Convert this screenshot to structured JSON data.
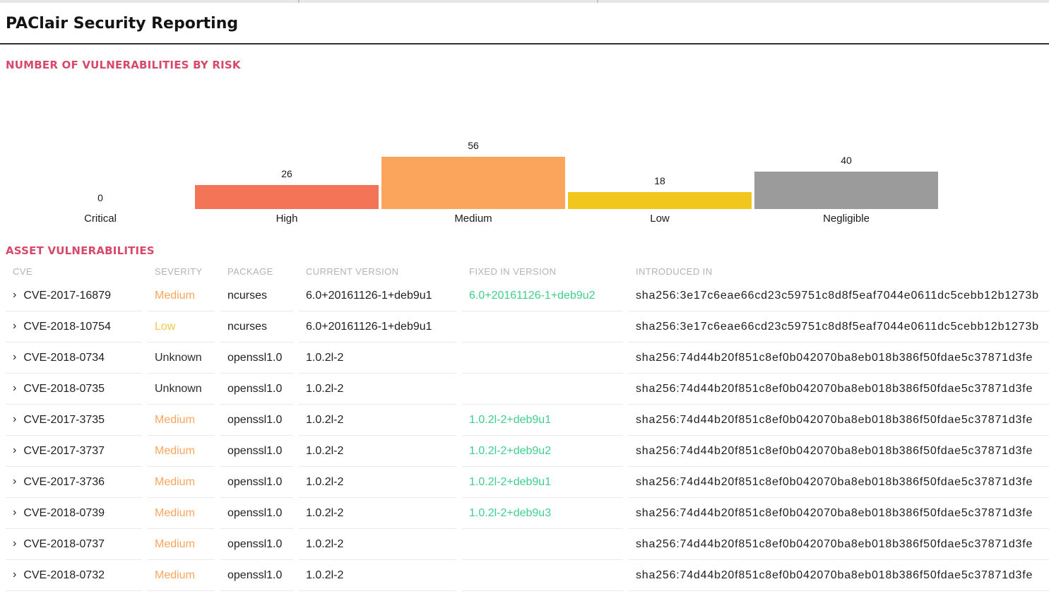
{
  "header": {
    "title": "PAClair Security Reporting"
  },
  "colors": {
    "section_heading": "#d6496b",
    "fixed_in_green": "#3ecf8e"
  },
  "vuln_chart_section": {
    "title": "NUMBER OF VULNERABILITIES BY RISK"
  },
  "chart_data": {
    "type": "bar",
    "title": "NUMBER OF VULNERABILITIES BY RISK",
    "categories": [
      "Critical",
      "High",
      "Medium",
      "Low",
      "Negligible"
    ],
    "values": [
      0,
      26,
      56,
      18,
      40
    ],
    "bar_colors": {
      "Critical": null,
      "High": "#f47458",
      "Medium": "#fba55c",
      "Low": "#f2c71d",
      "Negligible": "#9b9b9b"
    },
    "value_labels_shown": true,
    "xlabel": "",
    "ylabel": "",
    "grid": false,
    "legend": "none",
    "axes_hidden": true
  },
  "asset_section": {
    "title": "ASSET VULNERABILITIES"
  },
  "table": {
    "chevron": "›",
    "columns": [
      "CVE",
      "SEVERITY",
      "PACKAGE",
      "CURRENT VERSION",
      "FIXED IN VERSION",
      "INTRODUCED IN"
    ],
    "severity_colors": {
      "Medium": "#fba55c",
      "Low": "#f3c84b",
      "Unknown": "#2d2d2d"
    },
    "rows": [
      [
        "CVE-2017-16879",
        "Medium",
        "ncurses",
        "6.0+20161126-1+deb9u1",
        "6.0+20161126-1+deb9u2",
        "sha256:3e17c6eae66cd23c59751c8d8f5eaf7044e0611dc5cebb12b1273b"
      ],
      [
        "CVE-2018-10754",
        "Low",
        "ncurses",
        "6.0+20161126-1+deb9u1",
        "",
        "sha256:3e17c6eae66cd23c59751c8d8f5eaf7044e0611dc5cebb12b1273b"
      ],
      [
        "CVE-2018-0734",
        "Unknown",
        "openssl1.0",
        "1.0.2l-2",
        "",
        "sha256:74d44b20f851c8ef0b042070ba8eb018b386f50fdae5c37871d3fe"
      ],
      [
        "CVE-2018-0735",
        "Unknown",
        "openssl1.0",
        "1.0.2l-2",
        "",
        "sha256:74d44b20f851c8ef0b042070ba8eb018b386f50fdae5c37871d3fe"
      ],
      [
        "CVE-2017-3735",
        "Medium",
        "openssl1.0",
        "1.0.2l-2",
        "1.0.2l-2+deb9u1",
        "sha256:74d44b20f851c8ef0b042070ba8eb018b386f50fdae5c37871d3fe"
      ],
      [
        "CVE-2017-3737",
        "Medium",
        "openssl1.0",
        "1.0.2l-2",
        "1.0.2l-2+deb9u2",
        "sha256:74d44b20f851c8ef0b042070ba8eb018b386f50fdae5c37871d3fe"
      ],
      [
        "CVE-2017-3736",
        "Medium",
        "openssl1.0",
        "1.0.2l-2",
        "1.0.2l-2+deb9u1",
        "sha256:74d44b20f851c8ef0b042070ba8eb018b386f50fdae5c37871d3fe"
      ],
      [
        "CVE-2018-0739",
        "Medium",
        "openssl1.0",
        "1.0.2l-2",
        "1.0.2l-2+deb9u3",
        "sha256:74d44b20f851c8ef0b042070ba8eb018b386f50fdae5c37871d3fe"
      ],
      [
        "CVE-2018-0737",
        "Medium",
        "openssl1.0",
        "1.0.2l-2",
        "",
        "sha256:74d44b20f851c8ef0b042070ba8eb018b386f50fdae5c37871d3fe"
      ],
      [
        "CVE-2018-0732",
        "Medium",
        "openssl1.0",
        "1.0.2l-2",
        "",
        "sha256:74d44b20f851c8ef0b042070ba8eb018b386f50fdae5c37871d3fe"
      ]
    ]
  }
}
